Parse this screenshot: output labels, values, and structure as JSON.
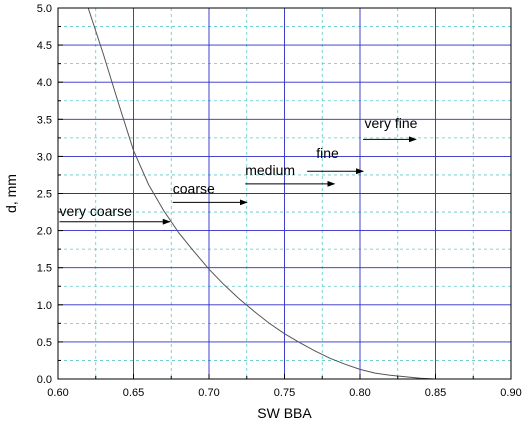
{
  "chart_data": {
    "type": "line",
    "xlabel": "SW BBA",
    "ylabel": "d, mm",
    "xlim": [
      0.6,
      0.9
    ],
    "ylim": [
      0.0,
      5.0
    ],
    "x_ticks": [
      0.6,
      0.65,
      0.7,
      0.75,
      0.8,
      0.85,
      0.9
    ],
    "y_ticks": [
      0.0,
      0.5,
      1.0,
      1.5,
      2.0,
      2.5,
      3.0,
      3.5,
      4.0,
      4.5,
      5.0
    ],
    "x_tick_labels": [
      "0.60",
      "0.65",
      "0.70",
      "0.75",
      "0.80",
      "0.85",
      "0.90"
    ],
    "y_tick_labels": [
      "0.0",
      "0.5",
      "1.0",
      "1.5",
      "2.0",
      "2.5",
      "3.0",
      "3.5",
      "4.0",
      "4.5",
      "5.0"
    ],
    "grid": {
      "major": true,
      "minor": true
    },
    "series": [
      {
        "x": [
          0.62,
          0.63,
          0.64,
          0.65,
          0.66,
          0.67,
          0.68,
          0.69,
          0.7,
          0.71,
          0.72,
          0.73,
          0.74,
          0.75,
          0.76,
          0.77,
          0.78,
          0.79,
          0.8,
          0.81,
          0.82,
          0.83,
          0.84,
          0.85,
          0.86
        ],
        "y": [
          5.0,
          4.38,
          3.72,
          3.08,
          2.62,
          2.27,
          1.97,
          1.72,
          1.48,
          1.27,
          1.08,
          0.91,
          0.75,
          0.61,
          0.49,
          0.38,
          0.28,
          0.2,
          0.13,
          0.08,
          0.05,
          0.03,
          0.01,
          0.0,
          0.0
        ]
      }
    ],
    "annotations": [
      {
        "text": "very coarse",
        "label_x": 0.601,
        "label_y": 2.2,
        "arrow": {
          "x1": 0.601,
          "y1": 2.12,
          "x2": 0.674,
          "y2": 2.12
        }
      },
      {
        "text": "coarse",
        "label_x": 0.676,
        "label_y": 2.5,
        "arrow": {
          "x1": 0.676,
          "y1": 2.38,
          "x2": 0.725,
          "y2": 2.38
        }
      },
      {
        "text": "medium",
        "label_x": 0.724,
        "label_y": 2.75,
        "arrow": {
          "x1": 0.724,
          "y1": 2.63,
          "x2": 0.783,
          "y2": 2.63
        }
      },
      {
        "text": "fine",
        "label_x": 0.771,
        "label_y": 2.98,
        "arrow": {
          "x1": 0.765,
          "y1": 2.8,
          "x2": 0.802,
          "y2": 2.8
        }
      },
      {
        "text": "very fine",
        "label_x": 0.803,
        "label_y": 3.38,
        "arrow": {
          "x1": 0.802,
          "y1": 3.23,
          "x2": 0.837,
          "y2": 3.23
        }
      }
    ],
    "colors": {
      "major_grid": "#2c2cc8",
      "minor_grid": "#5cc8c8",
      "curve": "#555555",
      "axes": "#000000"
    }
  }
}
